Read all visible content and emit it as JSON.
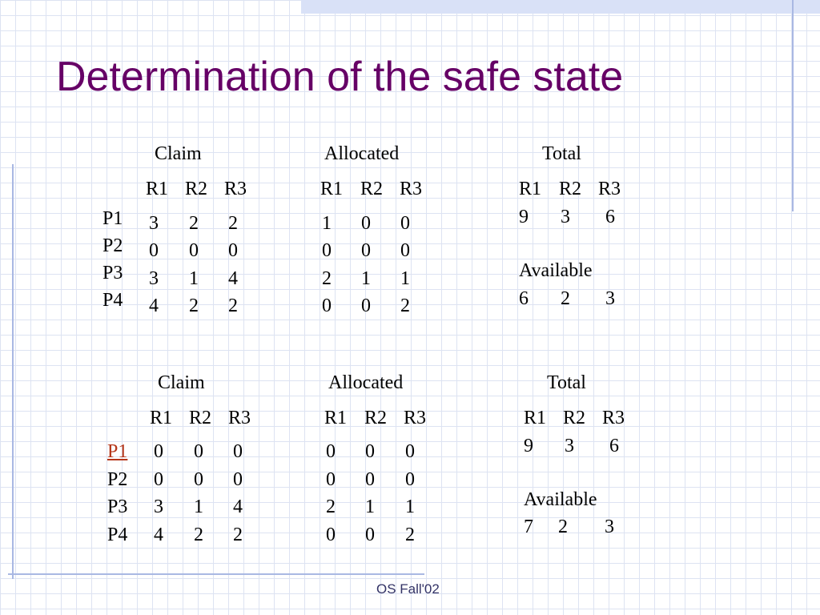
{
  "title": "Determination of the safe state",
  "footer": "OS Fall'02",
  "resources": [
    "R1",
    "R2",
    "R3"
  ],
  "processes": [
    "P1",
    "P2",
    "P3",
    "P4"
  ],
  "section1": {
    "claim_label": "Claim",
    "allocated_label": "Allocated",
    "total_label": "Total",
    "claim": [
      [
        "3",
        "2",
        "2"
      ],
      [
        "0",
        "0",
        "0"
      ],
      [
        "3",
        "1",
        "4"
      ],
      [
        "4",
        "2",
        "2"
      ]
    ],
    "allocated": [
      [
        "1",
        "0",
        "0"
      ],
      [
        "0",
        "0",
        "0"
      ],
      [
        "2",
        "1",
        "1"
      ],
      [
        "0",
        "0",
        "2"
      ]
    ],
    "total": [
      "9",
      "3",
      "6"
    ],
    "available_label": "Available",
    "available": [
      "6",
      "2",
      "3"
    ]
  },
  "section2": {
    "claim_label": "Claim",
    "allocated_label": "Allocated",
    "total_label": "Total",
    "claim": [
      [
        "0",
        "0",
        "0"
      ],
      [
        "0",
        "0",
        "0"
      ],
      [
        "3",
        "1",
        "4"
      ],
      [
        "4",
        "2",
        "2"
      ]
    ],
    "allocated": [
      [
        "0",
        "0",
        "0"
      ],
      [
        "0",
        "0",
        "0"
      ],
      [
        "2",
        "1",
        "1"
      ],
      [
        "0",
        "0",
        "2"
      ]
    ],
    "total": [
      "9",
      "3",
      "6"
    ],
    "available_label": "Available",
    "available": [
      "7",
      "2",
      "3"
    ]
  }
}
